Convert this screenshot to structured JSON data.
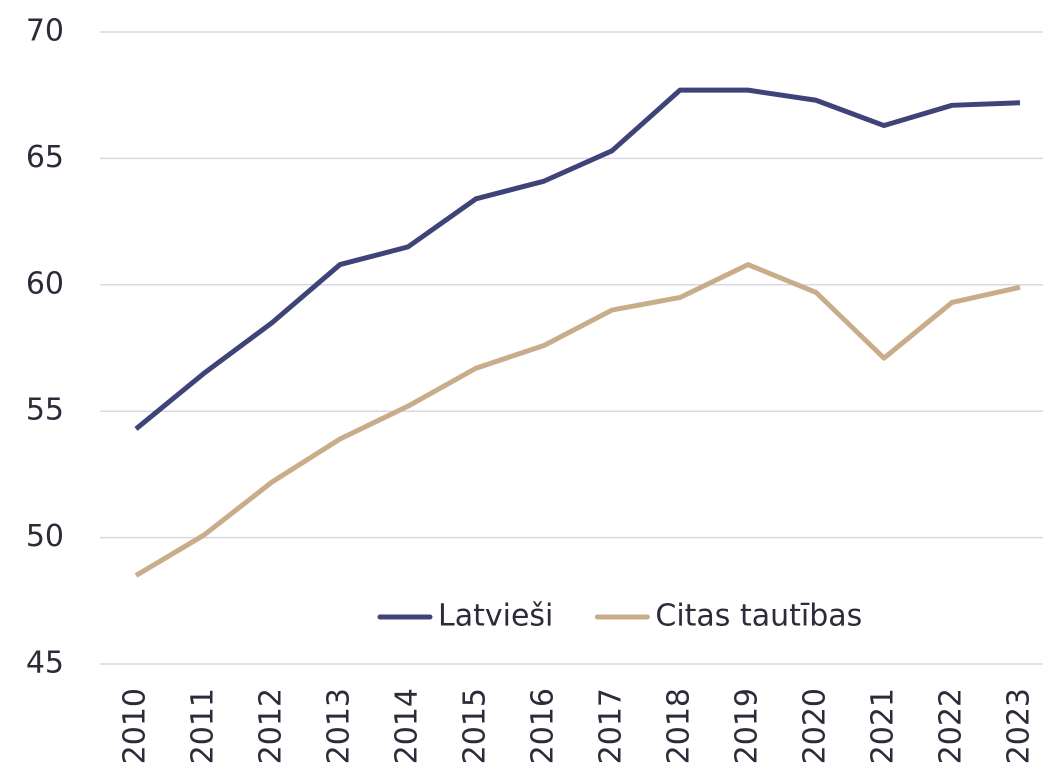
{
  "chart_data": {
    "type": "line",
    "categories": [
      "2010",
      "2011",
      "2012",
      "2013",
      "2014",
      "2015",
      "2016",
      "2017",
      "2018",
      "2019",
      "2020",
      "2021",
      "2022",
      "2023"
    ],
    "series": [
      {
        "name": "Latvieši",
        "color": "#3f4478",
        "values": [
          54.3,
          56.5,
          58.5,
          60.8,
          61.5,
          63.4,
          64.1,
          65.3,
          67.7,
          67.7,
          67.3,
          66.3,
          67.1,
          67.2
        ]
      },
      {
        "name": "Citas tautības",
        "color": "#c9ad8a",
        "values": [
          48.5,
          50.1,
          52.2,
          53.9,
          55.2,
          56.7,
          57.6,
          59.0,
          59.5,
          60.8,
          59.7,
          57.1,
          59.3,
          59.9
        ]
      }
    ],
    "ylim": [
      45,
      70
    ],
    "yticks": [
      45,
      50,
      55,
      60,
      65,
      70
    ],
    "grid": true,
    "legend": "bottom"
  }
}
